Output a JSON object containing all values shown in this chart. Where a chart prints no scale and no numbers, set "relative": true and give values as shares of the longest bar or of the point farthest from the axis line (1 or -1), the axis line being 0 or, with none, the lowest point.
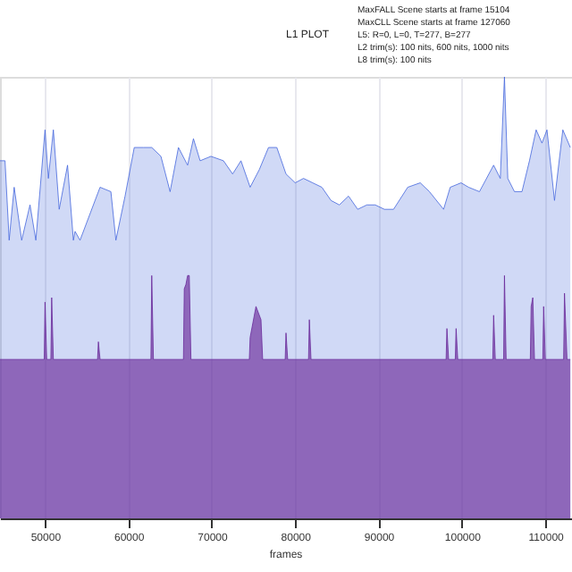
{
  "chart_data": {
    "type": "area",
    "title": "L1 PLOT",
    "xlabel": "frames",
    "relative": true,
    "annotations": [
      "MaxFALL Scene starts at frame 15104",
      "MaxCLL Scene starts at frame 127060",
      "L5: R=0, L=0, T=277, B=277",
      "L2 trim(s): 100 nits, 600 nits, 1000 nits",
      "L8 trim(s): 100 nits"
    ],
    "xlim": [
      44600,
      113200
    ],
    "xticks": [
      50000,
      60000,
      70000,
      80000,
      90000,
      100000,
      110000
    ],
    "grid": "x",
    "series": [
      {
        "color": "#4466dd",
        "x": [
          44600,
          45200,
          45700,
          46300,
          47200,
          48200,
          48900,
          50000,
          50400,
          51000,
          51700,
          52700,
          53400,
          53600,
          54200,
          56600,
          57900,
          58500,
          59600,
          60700,
          61800,
          62800,
          63900,
          65000,
          66000,
          67100,
          67800,
          68600,
          69900,
          71400,
          72500,
          73500,
          74600,
          75700,
          76800,
          77800,
          78900,
          80000,
          81000,
          82100,
          83200,
          84300,
          85300,
          86400,
          87500,
          88600,
          89600,
          90700,
          91800,
          93500,
          95000,
          96100,
          97800,
          98600,
          99900,
          100800,
          102100,
          103800,
          104600,
          105100,
          105500,
          106300,
          107200,
          108100,
          108900,
          109600,
          110200,
          111100,
          112100,
          113000
        ],
        "values": [
          0.81,
          0.81,
          0.63,
          0.75,
          0.63,
          0.71,
          0.63,
          0.88,
          0.77,
          0.88,
          0.7,
          0.8,
          0.63,
          0.65,
          0.63,
          0.75,
          0.74,
          0.63,
          0.73,
          0.84,
          0.84,
          0.84,
          0.82,
          0.74,
          0.84,
          0.8,
          0.86,
          0.81,
          0.82,
          0.81,
          0.78,
          0.81,
          0.75,
          0.79,
          0.84,
          0.84,
          0.78,
          0.76,
          0.77,
          0.76,
          0.75,
          0.72,
          0.71,
          0.73,
          0.7,
          0.71,
          0.71,
          0.7,
          0.7,
          0.75,
          0.76,
          0.74,
          0.7,
          0.75,
          0.76,
          0.75,
          0.74,
          0.8,
          0.77,
          1,
          0.77,
          0.74,
          0.74,
          0.81,
          0.88,
          0.85,
          0.88,
          0.72,
          0.88,
          0.84
        ]
      },
      {
        "color": "#6a2a9a",
        "x": [
          44600,
          49900,
          50000,
          50200,
          50700,
          50800,
          51000,
          56300,
          56400,
          56600,
          62700,
          62800,
          63000,
          66600,
          66700,
          66900,
          67100,
          67300,
          67500,
          74500,
          74600,
          75300,
          75900,
          76100,
          78800,
          78900,
          79100,
          81600,
          81700,
          81900,
          98100,
          98200,
          98400,
          99200,
          99300,
          99500,
          103700,
          103800,
          104000,
          105000,
          105100,
          105300,
          108200,
          108300,
          108500,
          108700,
          109700,
          109800,
          110000,
          112200,
          112300,
          112600,
          113000
        ],
        "values": [
          0.36,
          0.36,
          0.49,
          0.36,
          0.36,
          0.5,
          0.36,
          0.36,
          0.4,
          0.36,
          0.36,
          0.55,
          0.36,
          0.36,
          0.52,
          0.53,
          0.55,
          0.55,
          0.36,
          0.36,
          0.41,
          0.48,
          0.45,
          0.36,
          0.36,
          0.42,
          0.36,
          0.36,
          0.45,
          0.36,
          0.36,
          0.43,
          0.36,
          0.36,
          0.43,
          0.36,
          0.36,
          0.46,
          0.36,
          0.36,
          0.55,
          0.36,
          0.36,
          0.48,
          0.5,
          0.36,
          0.36,
          0.48,
          0.36,
          0.36,
          0.51,
          0.36,
          0.36
        ]
      }
    ]
  }
}
